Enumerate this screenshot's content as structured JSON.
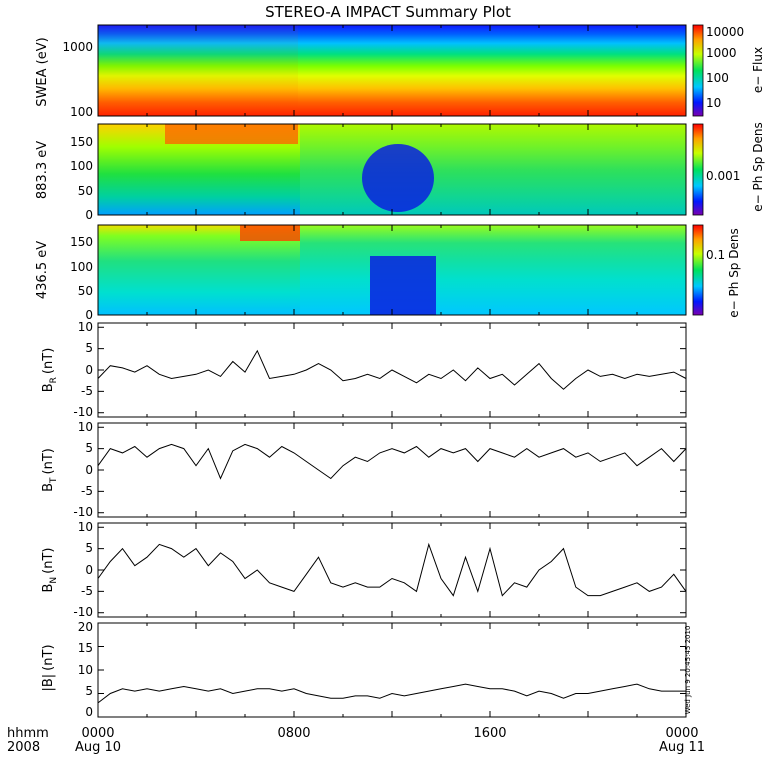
{
  "title": "STEREO-A IMPACT Summary Plot",
  "timestamp_note": "Wed Jun  9 20:45:45 2010",
  "footer": {
    "hhmm_label": "hhmm",
    "year_label": "2008",
    "ticks": [
      "0000",
      "0800",
      "1600",
      "0000"
    ],
    "dates": [
      "Aug 10",
      "Aug 11"
    ]
  },
  "chart_data": [
    {
      "type": "heatmap",
      "ylabel": "SWEA (eV)",
      "yscale": "log",
      "ylim": [
        100,
        2000
      ],
      "yticks": [
        "1000",
        "100"
      ],
      "colorbar": {
        "label": "e− Flux",
        "scale": "log",
        "ticks": [
          "10000",
          "1000",
          "100",
          "10"
        ]
      }
    },
    {
      "type": "heatmap",
      "ylabel": "883.3 eV",
      "ylim": [
        0,
        180
      ],
      "yticks": [
        "150",
        "100",
        "50",
        "0"
      ],
      "colorbar": {
        "label": "e− Ph Sp Dens",
        "scale": "log",
        "ticks": [
          "0.001"
        ]
      }
    },
    {
      "type": "heatmap",
      "ylabel": "436.5 eV",
      "ylim": [
        0,
        180
      ],
      "yticks": [
        "150",
        "100",
        "50",
        "0"
      ],
      "colorbar": {
        "label": "e− Ph Sp Dens",
        "scale": "log",
        "ticks": [
          "0.1"
        ]
      }
    },
    {
      "type": "line",
      "ylabel": "B",
      "ylabel_sub": "R",
      "ylabel_unit": "(nT)",
      "ylim": [
        -11,
        11
      ],
      "yticks": [
        "10",
        "5",
        "0",
        "-5",
        "-10"
      ],
      "x_hours": [
        0,
        0.5,
        1,
        1.5,
        2,
        2.5,
        3,
        3.5,
        4,
        4.5,
        5,
        5.5,
        6,
        6.5,
        7,
        7.5,
        8,
        8.5,
        9,
        9.5,
        10,
        10.5,
        11,
        11.5,
        12,
        12.5,
        13,
        13.5,
        14,
        14.5,
        15,
        15.5,
        16,
        16.5,
        17,
        17.5,
        18,
        18.5,
        19,
        19.5,
        20,
        20.5,
        21,
        21.5,
        22,
        22.5,
        23,
        23.5,
        24
      ],
      "values": [
        -2,
        1,
        0.5,
        -0.5,
        1,
        -1,
        -2,
        -1.5,
        -1,
        0,
        -1.5,
        2,
        -0.5,
        4.5,
        -2,
        -1.5,
        -1,
        0,
        1.5,
        0,
        -2.5,
        -2,
        -1,
        -2,
        0,
        -1.5,
        -3,
        -1,
        -2,
        0,
        -2.5,
        0.5,
        -2,
        -1,
        -3.5,
        -1,
        1.5,
        -2,
        -4.5,
        -2,
        0,
        -1.5,
        -1,
        -2,
        -1,
        -1.5,
        -1,
        -0.5,
        -2
      ]
    },
    {
      "type": "line",
      "ylabel": "B",
      "ylabel_sub": "T",
      "ylabel_unit": "(nT)",
      "ylim": [
        -11,
        11
      ],
      "yticks": [
        "10",
        "5",
        "0",
        "-5",
        "-10"
      ],
      "x_hours": [
        0,
        0.5,
        1,
        1.5,
        2,
        2.5,
        3,
        3.5,
        4,
        4.5,
        5,
        5.5,
        6,
        6.5,
        7,
        7.5,
        8,
        8.5,
        9,
        9.5,
        10,
        10.5,
        11,
        11.5,
        12,
        12.5,
        13,
        13.5,
        14,
        14.5,
        15,
        15.5,
        16,
        16.5,
        17,
        17.5,
        18,
        18.5,
        19,
        19.5,
        20,
        20.5,
        21,
        21.5,
        22,
        22.5,
        23,
        23.5,
        24
      ],
      "values": [
        1,
        5,
        4,
        5.5,
        3,
        5,
        6,
        5,
        1,
        5,
        -2,
        4.5,
        6,
        5,
        3,
        5.5,
        4,
        2,
        0,
        -2,
        1,
        3,
        2,
        4,
        5,
        4,
        5.5,
        3,
        5,
        4,
        5,
        2,
        5,
        4,
        3,
        5,
        3,
        4,
        5,
        3,
        4,
        2,
        3,
        4,
        1,
        3,
        5,
        2,
        5
      ]
    },
    {
      "type": "line",
      "ylabel": "B",
      "ylabel_sub": "N",
      "ylabel_unit": "(nT)",
      "ylim": [
        -11,
        11
      ],
      "yticks": [
        "10",
        "5",
        "0",
        "-5",
        "-10"
      ],
      "x_hours": [
        0,
        0.5,
        1,
        1.5,
        2,
        2.5,
        3,
        3.5,
        4,
        4.5,
        5,
        5.5,
        6,
        6.5,
        7,
        7.5,
        8,
        8.5,
        9,
        9.5,
        10,
        10.5,
        11,
        11.5,
        12,
        12.5,
        13,
        13.5,
        14,
        14.5,
        15,
        15.5,
        16,
        16.5,
        17,
        17.5,
        18,
        18.5,
        19,
        19.5,
        20,
        20.5,
        21,
        21.5,
        22,
        22.5,
        23,
        23.5,
        24
      ],
      "values": [
        -2,
        2,
        5,
        1,
        3,
        6,
        5,
        3,
        5,
        1,
        4,
        2,
        -2,
        0,
        -3,
        -4,
        -5,
        -1,
        3,
        -3,
        -4,
        -3,
        -4,
        -4,
        -2,
        -3,
        -5,
        6,
        -2,
        -6,
        3,
        -5,
        5,
        -6,
        -3,
        -4,
        0,
        2,
        5,
        -4,
        -6,
        -6,
        -5,
        -4,
        -3,
        -5,
        -4,
        -1,
        -5
      ]
    },
    {
      "type": "line",
      "ylabel": "|B|",
      "ylabel_unit": "(nT)",
      "ylim": [
        0,
        20
      ],
      "yticks": [
        "20",
        "15",
        "10",
        "5",
        "0"
      ],
      "x_hours": [
        0,
        0.5,
        1,
        1.5,
        2,
        2.5,
        3,
        3.5,
        4,
        4.5,
        5,
        5.5,
        6,
        6.5,
        7,
        7.5,
        8,
        8.5,
        9,
        9.5,
        10,
        10.5,
        11,
        11.5,
        12,
        12.5,
        13,
        13.5,
        14,
        14.5,
        15,
        15.5,
        16,
        16.5,
        17,
        17.5,
        18,
        18.5,
        19,
        19.5,
        20,
        20.5,
        21,
        21.5,
        22,
        22.5,
        23,
        23.5,
        24
      ],
      "values": [
        3,
        5,
        6,
        5.5,
        6,
        5.5,
        6,
        6.5,
        6,
        5.5,
        6,
        5,
        5.5,
        6,
        6,
        5.5,
        6,
        5,
        4.5,
        4,
        4,
        4.5,
        4.5,
        4,
        5,
        4.5,
        5,
        5.5,
        6,
        6.5,
        7,
        6.5,
        6,
        6,
        5.5,
        4.5,
        5.5,
        5,
        4,
        5,
        5,
        5.5,
        6,
        6.5,
        7,
        6,
        5.5,
        5.5,
        5.5
      ]
    }
  ]
}
